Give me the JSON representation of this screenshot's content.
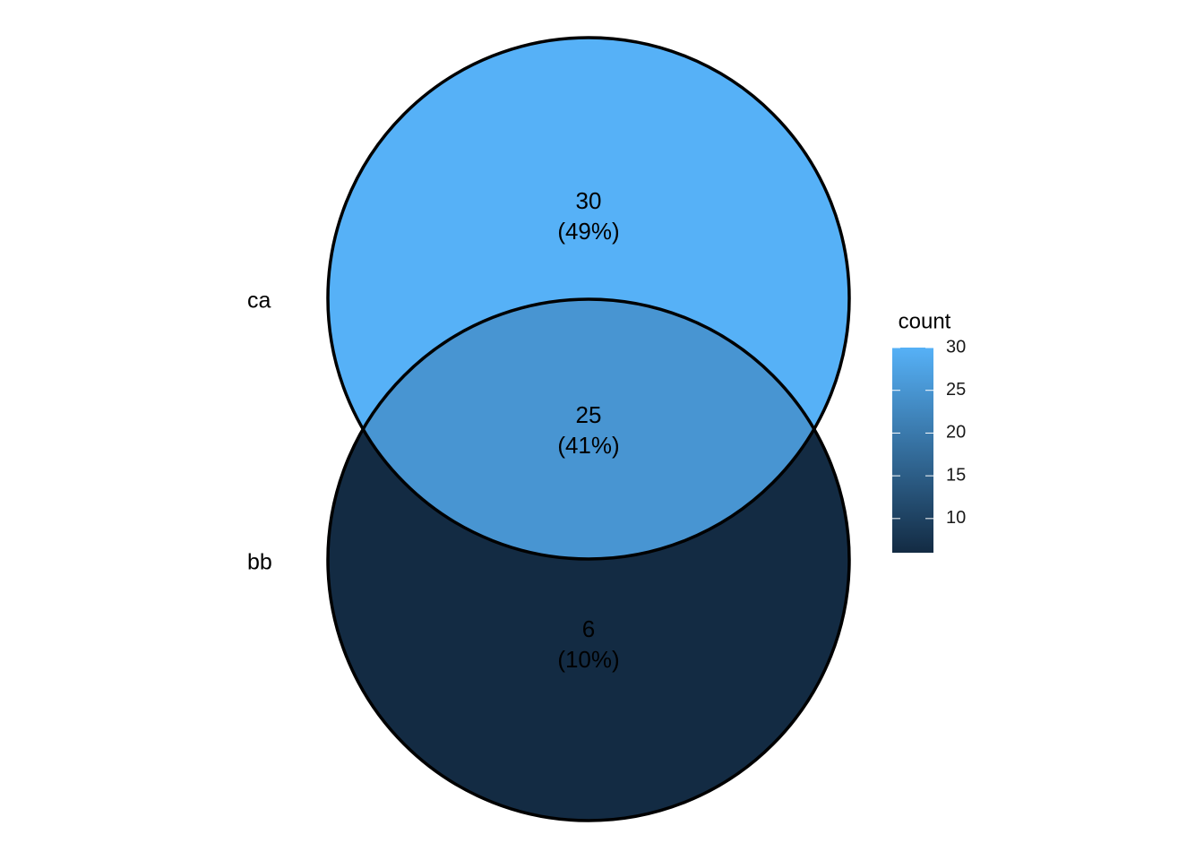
{
  "chart_data": {
    "type": "venn",
    "sets": [
      "ca",
      "bb"
    ],
    "values": [
      30,
      25,
      6
    ],
    "percents": [
      49,
      41,
      10
    ],
    "percent_labels": [
      "(49%)",
      "(41%)",
      "(10%)"
    ],
    "colorbar": {
      "title": "count",
      "lim": [
        6,
        30
      ],
      "ticks": [
        10,
        15,
        20,
        25,
        30
      ],
      "colors": [
        "#132b43",
        "#56b1f7"
      ]
    }
  }
}
